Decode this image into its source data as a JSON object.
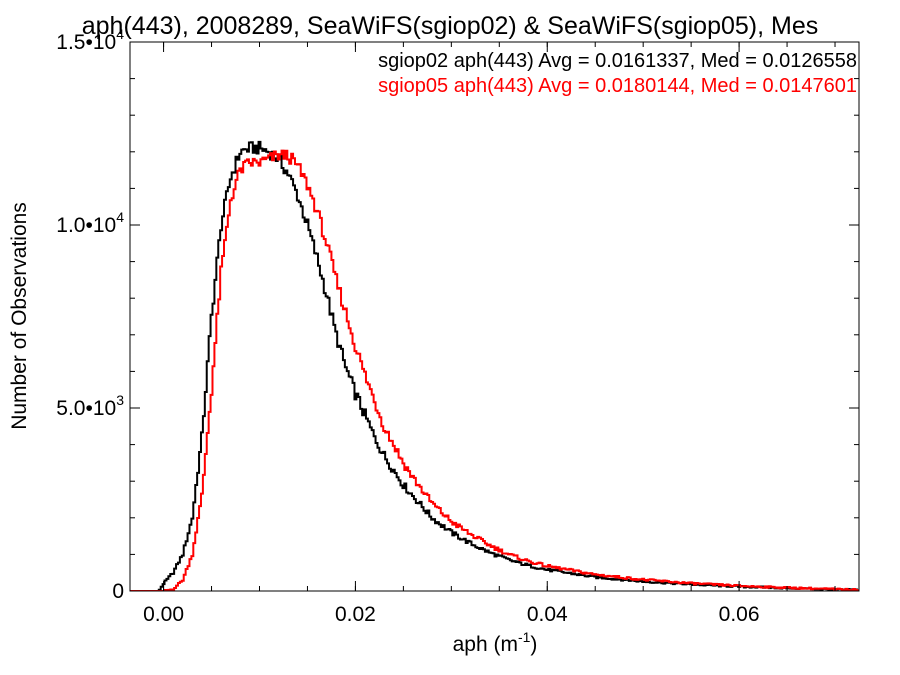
{
  "chart_data": {
    "type": "line",
    "title": "aph(443), 2008289, SeaWiFS(sgiop02) & SeaWiFS(sgiop05), Mes",
    "xlabel": "aph (m",
    "xlabel_sup": "-1",
    "xlabel_close": ")",
    "ylabel": "Number of Observations",
    "xlim": [
      -0.0035,
      0.0725
    ],
    "ylim": [
      0,
      15000
    ],
    "x_ticks": [
      {
        "value": 0.0,
        "label": "0.00"
      },
      {
        "value": 0.02,
        "label": "0.02"
      },
      {
        "value": 0.04,
        "label": "0.04"
      },
      {
        "value": 0.06,
        "label": "0.06"
      }
    ],
    "y_ticks": [
      {
        "value": 0,
        "label": "0",
        "sup": ""
      },
      {
        "value": 5000,
        "label": "5.0•10",
        "sup": "3"
      },
      {
        "value": 10000,
        "label": "1.0•10",
        "sup": "4"
      },
      {
        "value": 15000,
        "label": "1.5•10",
        "sup": "4"
      }
    ],
    "grid": false,
    "legend_position": "top-right",
    "series": [
      {
        "name": "sgiop02 aph(443) Avg = 0.0161337, Med = 0.0126558",
        "color": "#000000",
        "x": [
          -0.0035,
          -0.0005,
          0.0,
          0.001,
          0.002,
          0.003,
          0.004,
          0.005,
          0.006,
          0.007,
          0.008,
          0.009,
          0.01,
          0.011,
          0.012,
          0.013,
          0.014,
          0.015,
          0.016,
          0.017,
          0.018,
          0.019,
          0.02,
          0.021,
          0.022,
          0.023,
          0.024,
          0.025,
          0.026,
          0.027,
          0.028,
          0.029,
          0.03,
          0.032,
          0.034,
          0.036,
          0.038,
          0.04,
          0.045,
          0.05,
          0.055,
          0.06,
          0.065,
          0.07,
          0.0725
        ],
        "y": [
          0,
          0,
          200,
          500,
          1000,
          2000,
          4200,
          7500,
          10000,
          11300,
          12000,
          12100,
          12100,
          12000,
          11800,
          11400,
          10800,
          10000,
          9100,
          8100,
          7000,
          6100,
          5400,
          4800,
          4200,
          3700,
          3300,
          2900,
          2600,
          2300,
          2000,
          1800,
          1600,
          1300,
          1050,
          850,
          700,
          580,
          380,
          260,
          180,
          120,
          80,
          40,
          30
        ]
      },
      {
        "name": "sgiop05 aph(443) Avg = 0.0180144, Med = 0.0147601",
        "color": "#ff0000",
        "x": [
          -0.0035,
          0.0,
          0.001,
          0.002,
          0.003,
          0.004,
          0.005,
          0.006,
          0.007,
          0.008,
          0.009,
          0.01,
          0.011,
          0.012,
          0.013,
          0.014,
          0.015,
          0.016,
          0.017,
          0.018,
          0.019,
          0.02,
          0.021,
          0.022,
          0.023,
          0.024,
          0.025,
          0.026,
          0.027,
          0.028,
          0.029,
          0.03,
          0.032,
          0.034,
          0.036,
          0.038,
          0.04,
          0.045,
          0.05,
          0.055,
          0.06,
          0.065,
          0.07,
          0.0725
        ],
        "y": [
          0,
          0,
          50,
          300,
          1000,
          2600,
          5500,
          8700,
          10700,
          11500,
          11700,
          11700,
          11800,
          11900,
          11900,
          11600,
          11100,
          10400,
          9500,
          8500,
          7600,
          6700,
          5900,
          5200,
          4500,
          4000,
          3500,
          3100,
          2750,
          2400,
          2150,
          1900,
          1550,
          1250,
          1000,
          820,
          680,
          450,
          310,
          210,
          140,
          90,
          50,
          30
        ]
      }
    ]
  }
}
